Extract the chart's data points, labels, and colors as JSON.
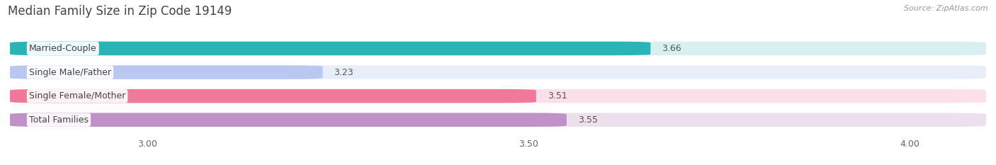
{
  "title": "Median Family Size in Zip Code 19149",
  "source": "Source: ZipAtlas.com",
  "categories": [
    "Married-Couple",
    "Single Male/Father",
    "Single Female/Mother",
    "Total Families"
  ],
  "values": [
    3.66,
    3.23,
    3.51,
    3.55
  ],
  "bar_colors": [
    "#29b5b5",
    "#b8c8f0",
    "#f07898",
    "#c090c8"
  ],
  "bar_bg_colors": [
    "#d8f0f0",
    "#e8eef8",
    "#fce0e8",
    "#ece0ec"
  ],
  "xlim": [
    2.82,
    4.1
  ],
  "xstart": 2.82,
  "xticks": [
    3.0,
    3.5,
    4.0
  ],
  "xtick_labels": [
    "3.00",
    "3.50",
    "4.00"
  ],
  "bar_height": 0.58,
  "background_color": "#ffffff",
  "title_fontsize": 12,
  "label_fontsize": 9,
  "value_fontsize": 9,
  "tick_fontsize": 9,
  "title_color": "#444444",
  "source_color": "#999999",
  "label_text_color": "#444444",
  "value_text_color": "#555555"
}
